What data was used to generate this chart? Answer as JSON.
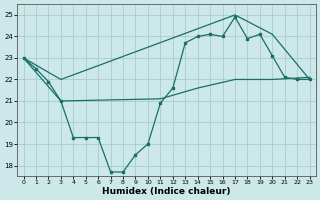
{
  "xlabel": "Humidex (Indice chaleur)",
  "bg_color": "#cce8e8",
  "grid_color": "#aacccc",
  "line_color": "#1a6e6a",
  "xlim": [
    -0.5,
    23.5
  ],
  "ylim": [
    17.5,
    25.5
  ],
  "yticks": [
    18,
    19,
    20,
    21,
    22,
    23,
    24,
    25
  ],
  "xticks": [
    0,
    1,
    2,
    3,
    4,
    5,
    6,
    7,
    8,
    9,
    10,
    11,
    12,
    13,
    14,
    15,
    16,
    17,
    18,
    19,
    20,
    21,
    22,
    23
  ],
  "line1_x": [
    0,
    1,
    2,
    3,
    4,
    5,
    6,
    7,
    8,
    9,
    10,
    11,
    12,
    13,
    14,
    15,
    16,
    17,
    18,
    19,
    20,
    21,
    22,
    23
  ],
  "line1_y": [
    23.0,
    22.5,
    21.9,
    21.0,
    19.3,
    19.3,
    19.3,
    17.7,
    17.7,
    18.5,
    19.0,
    20.9,
    21.6,
    23.7,
    24.0,
    24.1,
    24.0,
    24.9,
    23.9,
    24.1,
    23.1,
    22.1,
    22.0,
    22.0
  ],
  "line2_x": [
    0,
    3,
    17,
    20,
    23
  ],
  "line2_y": [
    23.0,
    22.0,
    25.0,
    24.1,
    22.0
  ],
  "line3_x": [
    0,
    3,
    11,
    14,
    17,
    20,
    23
  ],
  "line3_y": [
    23.0,
    21.0,
    21.1,
    21.6,
    22.0,
    22.0,
    22.1
  ]
}
